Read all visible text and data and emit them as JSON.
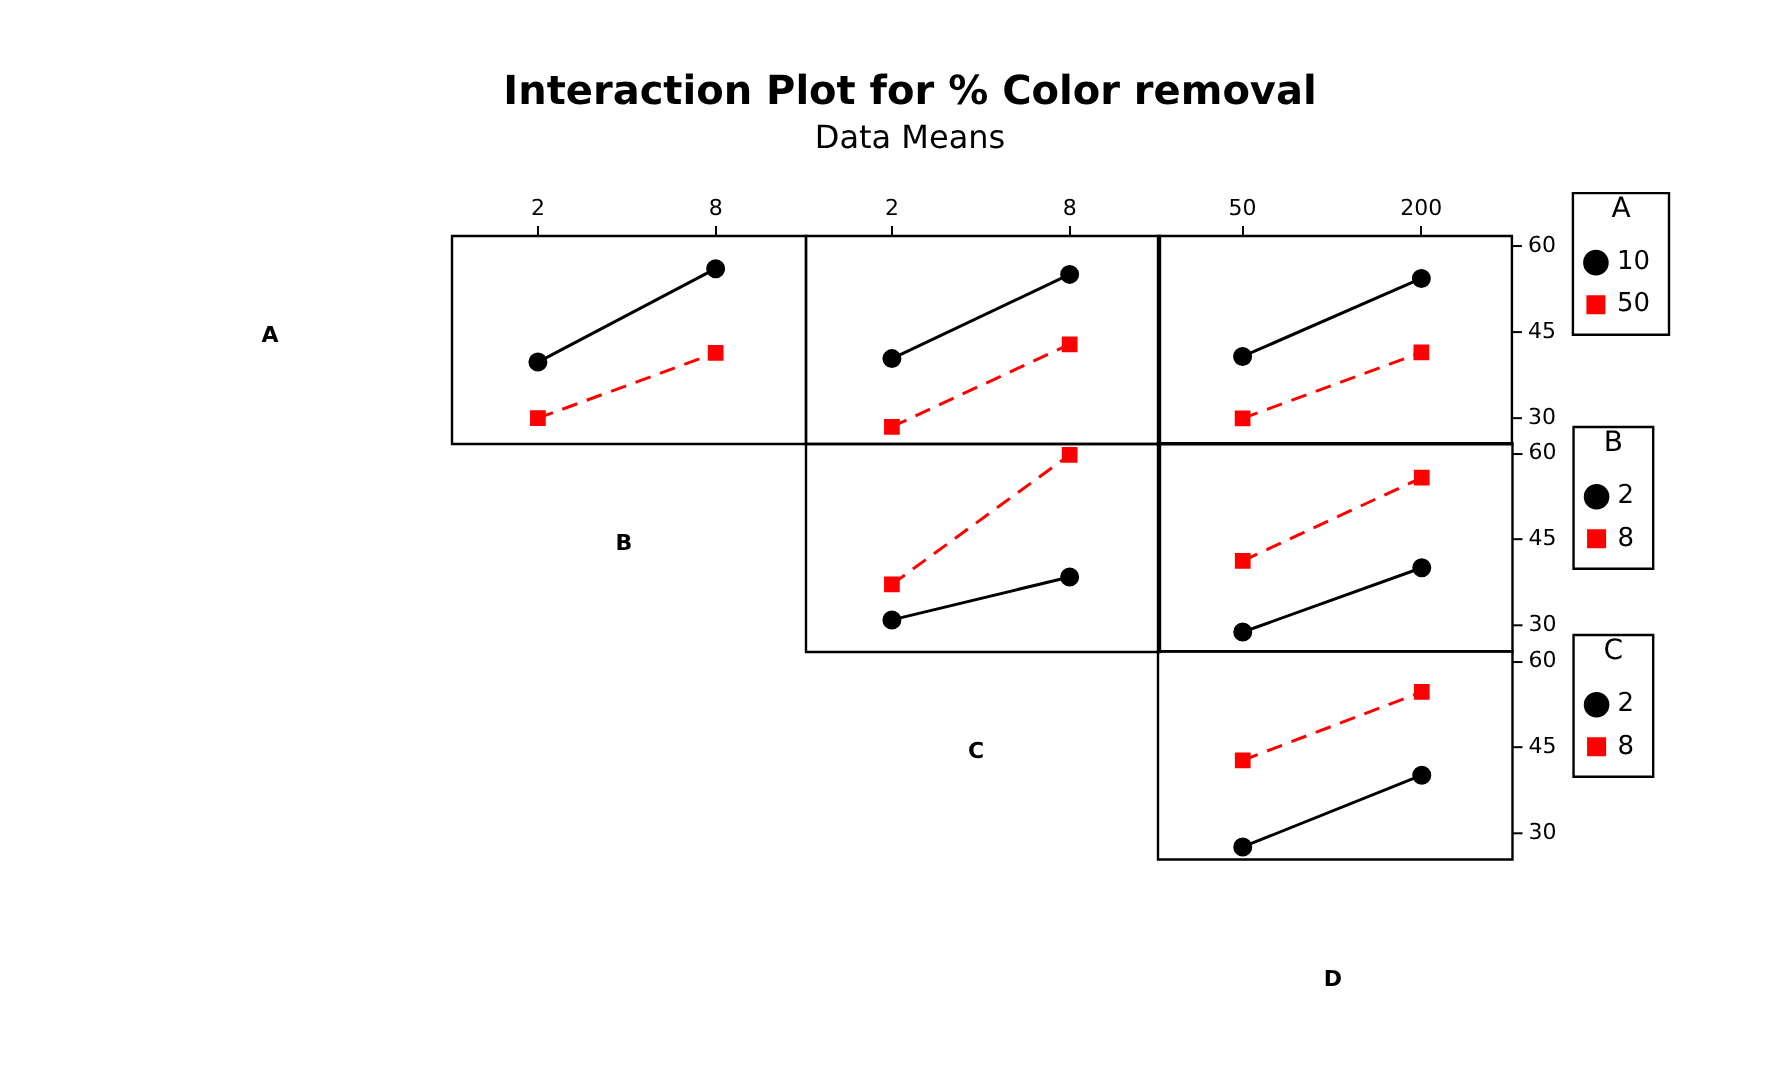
{
  "chart_data": [
    {
      "type": "line",
      "ylabel": "A",
      "x": [
        2,
        8
      ],
      "xlim": [
        -0.9,
        11.05
      ],
      "xticks": [
        2,
        8
      ],
      "ylim": [
        25.5,
        61.8
      ],
      "yticks": [
        30,
        45,
        60
      ],
      "tick_labels": "x",
      "series": [
        {
          "color": "#000000",
          "values": [
            39.8,
            56.1
          ],
          "marker": "circle",
          "line_style": "solid"
        },
        {
          "color": "#ff0000",
          "values": [
            30.0,
            41.4
          ],
          "marker": "square",
          "line_style": "dashed"
        }
      ]
    },
    {
      "type": "line",
      "title": "Interaction Plot for % Color removal",
      "subtitle": "Data Means",
      "x": [
        2,
        8
      ],
      "xlim": [
        -0.9,
        11.05
      ],
      "xticks": [
        2,
        8
      ],
      "ylim": [
        25.5,
        61.8
      ],
      "yticks": [
        30,
        45,
        60
      ],
      "tick_labels": "x",
      "series": [
        {
          "color": "#000000",
          "values": [
            40.4,
            55.1
          ],
          "marker": "circle",
          "line_style": "solid"
        },
        {
          "color": "#ff0000",
          "values": [
            28.5,
            42.9
          ],
          "marker": "square",
          "line_style": "dashed"
        }
      ]
    },
    {
      "type": "line",
      "x": [
        50,
        200
      ],
      "xlim": [
        -21,
        276
      ],
      "xticks": [
        50,
        200
      ],
      "ylim": [
        25.5,
        61.8
      ],
      "yticks": [
        30,
        45,
        60
      ],
      "legend": "right",
      "legend_title": "A",
      "series": [
        {
          "name": "10",
          "color": "#000000",
          "values": [
            40.8,
            54.4
          ],
          "marker": "circle",
          "line_style": "solid"
        },
        {
          "name": "50",
          "color": "#ff0000",
          "values": [
            30.0,
            41.5
          ],
          "marker": "square",
          "line_style": "dashed"
        }
      ]
    },
    {
      "type": "line",
      "ylabel": "B",
      "x": [
        2,
        8
      ],
      "xlim": [
        -0.9,
        11.05
      ],
      "xticks": [
        2,
        8
      ],
      "ylim": [
        25.5,
        61.8
      ],
      "yticks": [
        30,
        45,
        60
      ],
      "tick_labels": false,
      "series": [
        {
          "color": "#000000",
          "values": [
            31.1,
            38.6
          ],
          "marker": "circle",
          "line_style": "solid"
        },
        {
          "color": "#ff0000",
          "values": [
            37.3,
            59.9
          ],
          "marker": "square",
          "line_style": "dashed"
        }
      ]
    },
    {
      "type": "line",
      "x": [
        50,
        200
      ],
      "xlim": [
        -21,
        276
      ],
      "xticks": [
        50,
        200
      ],
      "ylim": [
        25.5,
        61.8
      ],
      "yticks": [
        30,
        45,
        60
      ],
      "tick_labels": "y",
      "legend": "right",
      "legend_title": "B",
      "series": [
        {
          "name": "2",
          "color": "#000000",
          "values": [
            28.9,
            40.1
          ],
          "marker": "circle",
          "line_style": "solid"
        },
        {
          "name": "8",
          "color": "#ff0000",
          "values": [
            41.3,
            55.8
          ],
          "marker": "square",
          "line_style": "dashed"
        }
      ]
    },
    {
      "type": "line",
      "ylabel": "C",
      "xlabel": "D",
      "x": [
        50,
        200
      ],
      "xlim": [
        -21,
        276
      ],
      "xticks": [
        50,
        200
      ],
      "ylim": [
        25.5,
        61.8
      ],
      "yticks": [
        30,
        45,
        60
      ],
      "tick_labels": "y",
      "legend": "right",
      "legend_title": "C",
      "series": [
        {
          "name": "2",
          "color": "#000000",
          "values": [
            27.7,
            40.2
          ],
          "marker": "circle",
          "line_style": "solid"
        },
        {
          "name": "8",
          "color": "#ff0000",
          "values": [
            42.8,
            54.7
          ],
          "marker": "square",
          "line_style": "dashed"
        }
      ]
    }
  ]
}
